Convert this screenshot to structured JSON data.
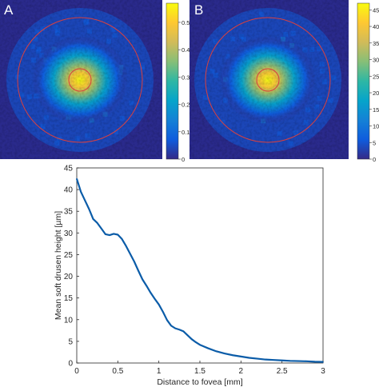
{
  "panels": [
    {
      "label": "A",
      "colorbar_ticks": [
        "0.5",
        "0.4",
        "0.3",
        "0.2",
        "0.1",
        "0"
      ],
      "colorbar_values": [
        0.5,
        0.4,
        0.3,
        0.2,
        0.1,
        0
      ]
    },
    {
      "label": "B",
      "colorbar_ticks": [
        "45",
        "40",
        "35",
        "30",
        "25",
        "20",
        "15",
        "10",
        "5",
        "0"
      ],
      "colorbar_values": [
        45,
        40,
        35,
        30,
        25,
        20,
        15,
        10,
        5,
        0
      ]
    }
  ],
  "colors": {
    "map_background": "#2a2a8c",
    "line": "#0b5ca8",
    "ring": "#d84040",
    "colormap": [
      "#352a87",
      "#0f5cdd",
      "#1481d6",
      "#06a4ca",
      "#2eb7a4",
      "#87bf77",
      "#d1bb59",
      "#fec832",
      "#f9fb0e"
    ]
  },
  "chart_data": {
    "type": "line",
    "xlabel": "Distance to fovea [mm]",
    "ylabel": "Mean soft drusen height [µm]",
    "xlim": [
      0,
      3
    ],
    "ylim": [
      0,
      45
    ],
    "xticks": [
      "0",
      "0.5",
      "1",
      "1.5",
      "2",
      "2.5",
      "3"
    ],
    "xtick_values": [
      0,
      0.5,
      1,
      1.5,
      2,
      2.5,
      3
    ],
    "yticks": [
      "0",
      "5",
      "10",
      "15",
      "20",
      "25",
      "30",
      "35",
      "40",
      "45"
    ],
    "ytick_values": [
      0,
      5,
      10,
      15,
      20,
      25,
      30,
      35,
      40,
      45
    ],
    "grid": false,
    "series": [
      {
        "x": [
          0,
          0.05,
          0.1,
          0.15,
          0.2,
          0.25,
          0.3,
          0.35,
          0.4,
          0.45,
          0.5,
          0.55,
          0.6,
          0.65,
          0.7,
          0.75,
          0.8,
          0.85,
          0.9,
          0.95,
          1.0,
          1.05,
          1.1,
          1.15,
          1.2,
          1.25,
          1.3,
          1.35,
          1.4,
          1.45,
          1.5,
          1.6,
          1.7,
          1.8,
          1.9,
          2.0,
          2.1,
          2.2,
          2.3,
          2.4,
          2.5,
          2.6,
          2.7,
          2.8,
          2.9,
          3.0
        ],
        "values": [
          42.5,
          39.5,
          37.5,
          35.5,
          33.2,
          32.3,
          31.0,
          29.7,
          29.5,
          29.8,
          29.6,
          28.6,
          27.0,
          25.2,
          23.4,
          21.3,
          19.3,
          17.8,
          16.2,
          14.8,
          13.5,
          11.8,
          9.9,
          8.6,
          8.0,
          7.7,
          7.3,
          6.4,
          5.5,
          4.8,
          4.2,
          3.4,
          2.7,
          2.2,
          1.8,
          1.5,
          1.2,
          1.0,
          0.8,
          0.7,
          0.6,
          0.5,
          0.45,
          0.4,
          0.3,
          0.25
        ]
      }
    ]
  }
}
